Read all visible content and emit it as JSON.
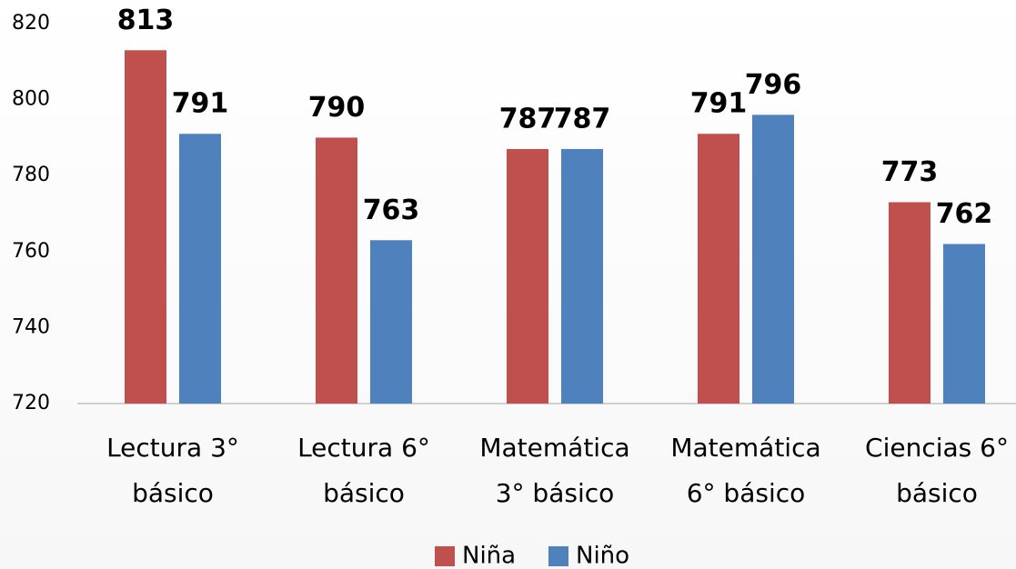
{
  "chart_data": {
    "type": "bar",
    "categories": [
      "Lectura 3° básico",
      "Lectura 6° básico",
      "Matemática 3° básico",
      "Matemática 6° básico",
      "Ciencias 6° básico"
    ],
    "series": [
      {
        "name": "Niña",
        "color": "#c0504d",
        "values": [
          813,
          790,
          787,
          791,
          773
        ]
      },
      {
        "name": "Niño",
        "color": "#4f81bd",
        "values": [
          791,
          763,
          787,
          796,
          762
        ]
      }
    ],
    "ylim": [
      720,
      820
    ],
    "yticks": [
      720,
      740,
      760,
      780,
      800,
      820
    ],
    "grid": false,
    "legend": "bottom"
  }
}
